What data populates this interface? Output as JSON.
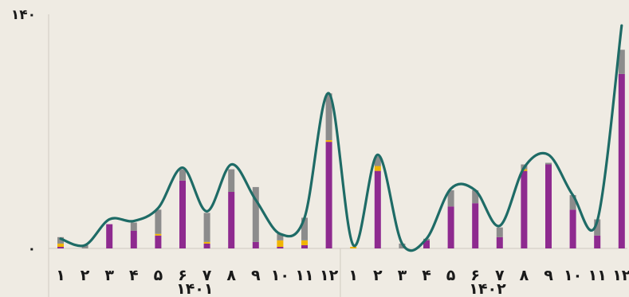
{
  "chart_data": {
    "type": "bar",
    "stacked": true,
    "y_ticks": [
      "۰",
      "۱۴۰"
    ],
    "ylim": [
      0,
      140
    ],
    "groups": [
      {
        "label": "۱۴۰۱",
        "categories": [
          "۱",
          "۲",
          "۳",
          "۴",
          "۵",
          "۶",
          "۷",
          "۸",
          "۹",
          "۱۰",
          "۱۱",
          "۱۲"
        ]
      },
      {
        "label": "۱۴۰۲",
        "categories": [
          "۱",
          "۲",
          "۳",
          "۴",
          "۵",
          "۶",
          "۷",
          "۸",
          "۹",
          "۱۰",
          "۱۱",
          "۱۲"
        ]
      }
    ],
    "series": [
      {
        "color": "#8e2a8f",
        "values": [
          1,
          0,
          15,
          11,
          8,
          42,
          3,
          35,
          4,
          1,
          2,
          66,
          0,
          48,
          0,
          5,
          26,
          28,
          7,
          48,
          52,
          24,
          8,
          108
        ]
      },
      {
        "color": "#f0b400",
        "values": [
          2,
          0,
          0,
          0,
          1,
          0,
          1,
          0,
          0,
          4,
          3,
          1,
          1,
          3,
          0,
          0,
          0,
          0,
          0,
          1,
          0,
          0,
          0,
          0
        ]
      },
      {
        "color": "#8c8c8c",
        "values": [
          4,
          2,
          0,
          5,
          15,
          7,
          18,
          14,
          34,
          4,
          14,
          29,
          0,
          6,
          3,
          1,
          10,
          8,
          6,
          3,
          1,
          9,
          10,
          15
        ]
      }
    ],
    "line": {
      "color": "#1e6b66",
      "values": [
        6,
        2,
        18,
        17,
        25,
        50,
        23,
        52,
        30,
        9,
        19,
        96,
        2,
        58,
        3,
        6,
        37,
        36,
        14,
        50,
        58,
        33,
        17,
        138
      ]
    },
    "grid": false,
    "legend": "none"
  }
}
